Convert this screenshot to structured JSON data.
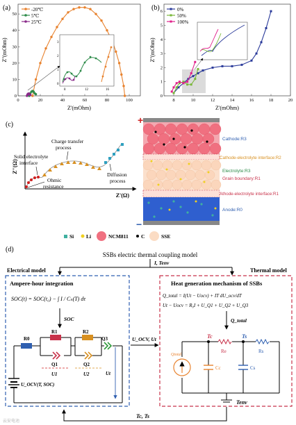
{
  "panel_a": {
    "label": "(a)",
    "ylabel": "Z''(mOhm)",
    "xlabel": "Z'(mOhm)",
    "xticks": [
      "0",
      "20",
      "40",
      "60",
      "80",
      "100"
    ],
    "yticks": [
      "0",
      "10",
      "20",
      "30",
      "40",
      "50"
    ],
    "legend": [
      "-20℃",
      "5℃",
      "25℃"
    ],
    "inset_xticks": [
      "8",
      "12",
      "16"
    ],
    "inset_yticks": [
      "0",
      "1",
      "2",
      "3"
    ]
  },
  "panel_b": {
    "label": "(b)",
    "ylabel": "Z''(mOhm)",
    "xlabel": "Z'(mOhm)",
    "xticks": [
      "8",
      "10",
      "12",
      "14",
      "16",
      "18",
      "20"
    ],
    "yticks": [
      "0",
      "1",
      "2",
      "3",
      "4",
      "5",
      "6"
    ],
    "legend": [
      "0%",
      "50%",
      "100%"
    ]
  },
  "chart_data": [
    {
      "type": "line",
      "title": "",
      "xlabel": "Z'(mOhm)",
      "ylabel": "Z''(mOhm)",
      "xlim": [
        0,
        110
      ],
      "ylim": [
        0,
        56
      ],
      "legend_position": "top-left",
      "series": [
        {
          "name": "-20℃",
          "color": "#e8822e",
          "x": [
            13,
            16,
            20,
            25,
            30,
            35,
            40,
            45,
            50,
            55,
            60,
            65,
            70,
            75,
            80,
            85,
            88,
            91,
            93,
            95,
            96
          ],
          "y": [
            0,
            10,
            20,
            29,
            36,
            42,
            47,
            51,
            53,
            54,
            54,
            53,
            50,
            46,
            40,
            33,
            27,
            20,
            13,
            6,
            0
          ]
        },
        {
          "name": "5℃",
          "color": "#2e8b4a",
          "x": [
            10,
            11,
            12,
            13,
            14,
            15,
            16
          ],
          "y": [
            0,
            1.5,
            2.5,
            3,
            2.5,
            1.5,
            1
          ]
        },
        {
          "name": "25℃",
          "color": "#8a2b8a",
          "x": [
            8,
            8.5,
            9,
            9.5,
            10,
            10.5,
            11
          ],
          "y": [
            0,
            0.8,
            1.2,
            1.4,
            1.2,
            0.8,
            0.6
          ]
        }
      ]
    },
    {
      "type": "line",
      "title": "",
      "xlabel": "Z'(mOhm)",
      "ylabel": "Z''(mOhm)",
      "xlim": [
        7,
        20
      ],
      "ylim": [
        0,
        6.5
      ],
      "legend_position": "top-left",
      "series": [
        {
          "name": "0%",
          "color": "#2a3a9a",
          "x": [
            8,
            8.5,
            9,
            9.5,
            10,
            10.5,
            11,
            12,
            13,
            14,
            15,
            16,
            16.5,
            17,
            17.5,
            18
          ],
          "y": [
            0.2,
            0.6,
            0.9,
            1.2,
            1.4,
            1.6,
            1.8,
            2.0,
            2.1,
            2.1,
            2.2,
            2.5,
            3.0,
            3.8,
            4.8,
            6.0
          ]
        },
        {
          "name": "50%",
          "color": "#7ab83a",
          "x": [
            8,
            8.3,
            8.6,
            9,
            9.4,
            9.8,
            10.2,
            10.5
          ],
          "y": [
            0.2,
            0.6,
            0.9,
            1.0,
            0.8,
            0.8,
            1.2,
            1.9
          ]
        },
        {
          "name": "100%",
          "color": "#e0208a",
          "x": [
            7.8,
            8,
            8.3,
            8.6,
            9,
            9.4,
            9.8,
            10.2
          ],
          "y": [
            0.3,
            0.6,
            0.9,
            1.0,
            0.9,
            1.0,
            1.6,
            2.4
          ]
        }
      ]
    }
  ],
  "panel_c": {
    "label": "(c)",
    "ylabel": "Z''(Ω)",
    "xlabel": "Z'(Ω)",
    "annotations": {
      "charge_transfer": "Charge transfer",
      "process": "process",
      "sei_1": "Solid electrolyte",
      "sei_2": "interface",
      "ohmic_1": "Ohmic",
      "ohmic_2": "resistance",
      "diffusion_1": "Diffusion",
      "diffusion_2": "process"
    },
    "battery_labels": {
      "cathode": "Cathode:R3",
      "cei": "Cathode-electrolyte interface:R2",
      "electrolyte": "Electrolyte:R3",
      "grain": "Grain boundary:R1",
      "aei": "Athode-electrolyte interface:R1",
      "anode": "Anode:R0"
    },
    "legend": {
      "si": "Si",
      "li": "Li",
      "ncm": "NCM811",
      "c": "C",
      "sse": "SSE"
    },
    "plus": "+",
    "minus": "−"
  },
  "panel_d": {
    "label": "(d)",
    "title": "SSBs electric thermal coupling model",
    "i_tenv": "I, Tenv",
    "electrical_model": "Electrical model",
    "thermal_model": "Thermal model",
    "ampere_title": "Ampere-hour integration",
    "soc_eq": "SOC(t) = SOC(t₀) − ∫ I / Cₙ(T) dτ",
    "soc": "SOC",
    "heat_title": "Heat generation mechanism of SSBs",
    "heat_eq1": "Q_total = I(Ut − Uocv) + IT dU_ocv/dT",
    "heat_eq2": "Ut − Uocv = R₀I + U_Q1 + U_Q2 + U_Q3",
    "q_total": "Q_total",
    "uocv_ut": "U_OCV, Ut",
    "r0": "R0",
    "r1": "R1",
    "r2": "R2",
    "q1": "Q1",
    "q2": "Q2",
    "q3": "Q3",
    "u1": "U1",
    "u2": "U2",
    "ut": "Ut",
    "uocv_src": "U_OCV(T, SOC)",
    "tc": "Tc",
    "ts": "Ts",
    "re": "Re",
    "rs": "Rs",
    "cc": "Cc",
    "cs": "Cs",
    "qtotal_src": "Qtotal",
    "tenv": "Tenv",
    "feedback": "Tc, Ts"
  },
  "watermark": "云安电池",
  "colors": {
    "orange": "#e8822e",
    "green": "#2e8b4a",
    "purple": "#8a2b8a",
    "navy": "#2a3a9a",
    "lime": "#7ab83a",
    "magenta": "#e0208a",
    "blue_box": "#2f5fb0",
    "red_box": "#c8324a"
  }
}
